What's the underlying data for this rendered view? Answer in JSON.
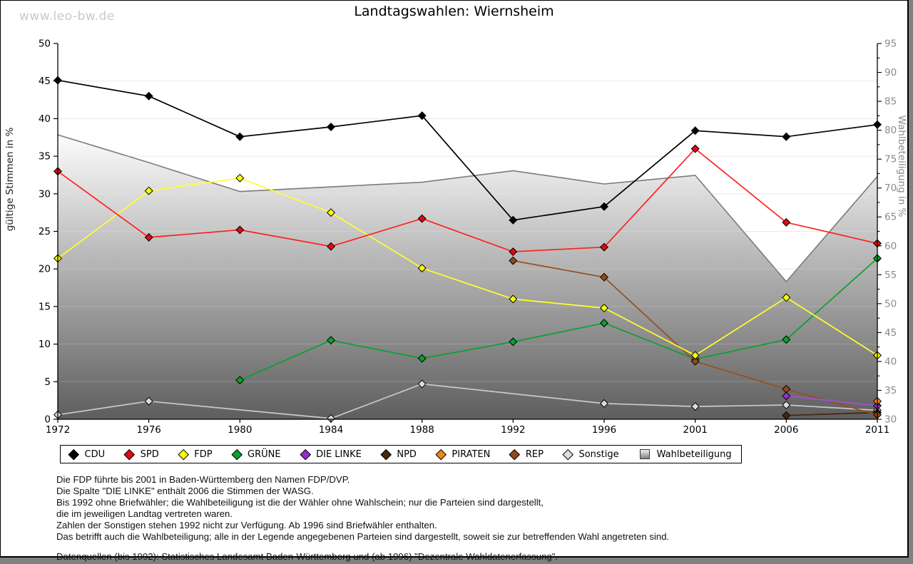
{
  "watermark": "www.leo-bw.de",
  "header": {
    "title": "Landtagswahlen: Wiernsheim"
  },
  "chart_data": {
    "type": "line",
    "title": "Landtagswahlen: Wiernsheim",
    "x": [
      1972,
      1976,
      1980,
      1984,
      1988,
      1992,
      1996,
      2001,
      2006,
      2011
    ],
    "ylabel_left": "gültige Stimmen in %",
    "ylabel_right": "Wahlbeteiligung in %",
    "ylim_left": [
      0,
      50
    ],
    "ylim_right": [
      30,
      95
    ],
    "yticks_left": [
      0,
      5,
      10,
      15,
      20,
      25,
      30,
      35,
      40,
      45,
      50
    ],
    "yticks_right": [
      30,
      35,
      40,
      45,
      50,
      55,
      60,
      65,
      70,
      75,
      80,
      85,
      90,
      95
    ],
    "ytick_minor_step_right": 2.5,
    "grid": true,
    "legend_position": "bottom",
    "series": [
      {
        "name": "CDU",
        "line_color": "#000000",
        "marker_color": "#000000",
        "z": 8,
        "values": [
          45.1,
          43.0,
          37.6,
          38.9,
          40.4,
          26.5,
          28.3,
          38.4,
          37.6,
          39.2
        ]
      },
      {
        "name": "SPD",
        "line_color": "#ff2020",
        "marker_color": "#e00914",
        "z": 7,
        "values": [
          33.0,
          24.2,
          25.2,
          23.0,
          26.7,
          22.3,
          22.9,
          36.0,
          26.2,
          23.4
        ]
      },
      {
        "name": "FDP",
        "line_color": "#ffff2e",
        "marker_color": "#ffff00",
        "z": 4,
        "values": [
          21.4,
          30.4,
          32.1,
          27.5,
          20.1,
          16.0,
          14.8,
          8.5,
          16.2,
          8.5
        ]
      },
      {
        "name": "GRÜNE",
        "line_color": "#0aa02c",
        "marker_color": "#0aa02c",
        "z": 2,
        "values": [
          null,
          null,
          5.2,
          10.5,
          8.1,
          10.3,
          12.8,
          8.0,
          10.6,
          21.4
        ]
      },
      {
        "name": "DIE LINKE",
        "line_color": "#a34fd4",
        "marker_color": "#9430c9",
        "z": 5,
        "values": [
          null,
          null,
          null,
          null,
          null,
          null,
          null,
          null,
          3.1,
          1.8
        ]
      },
      {
        "name": "NPD",
        "line_color": "#46280e",
        "marker_color": "#46280e",
        "z": 1,
        "values": [
          null,
          null,
          null,
          null,
          null,
          null,
          null,
          null,
          0.5,
          0.9
        ]
      },
      {
        "name": "PIRATEN",
        "line_color": "#f08418",
        "marker_color": "#f08418",
        "z": 6,
        "values": [
          null,
          null,
          null,
          null,
          null,
          null,
          null,
          null,
          null,
          2.4
        ]
      },
      {
        "name": "REP",
        "line_color": "#96501e",
        "marker_color": "#8f4a18",
        "z": 3,
        "values": [
          null,
          null,
          null,
          null,
          null,
          21.1,
          18.9,
          7.7,
          4.0,
          0.6
        ]
      },
      {
        "name": "Sonstige",
        "line_color": "#c9c9c9",
        "marker_color": "#dcdcdc",
        "z": 0,
        "values": [
          0.6,
          2.4,
          null,
          0.1,
          4.7,
          null,
          2.1,
          1.7,
          1.9,
          1.2
        ]
      }
    ],
    "area": {
      "name": "Wahlbeteiligung",
      "axis": "right",
      "edge_color": "#7b7b7b",
      "gradient_top": "#fdfdfd",
      "gradient_bottom": "#5e5e5e",
      "values": [
        79.2,
        74.4,
        69.4,
        70.2,
        71.0,
        73.0,
        70.7,
        72.2,
        53.8,
        72.0
      ]
    }
  },
  "footnotes": [
    "Die FDP führte bis 2001 in Baden-Württemberg den Namen FDP/DVP.",
    "Die Spalte \"DIE LINKE\" enthält 2006 die Stimmen der WASG.",
    "Bis 1992 ohne Briefwähler; die Wahlbeteiligung ist die der Wähler ohne Wahlschein; nur die Parteien sind dargestellt,",
    "die im jeweiligen Landtag vertreten waren.",
    "Zahlen der Sonstigen stehen 1992 nicht zur Verfügung. Ab 1996 sind Briefwähler enthalten.",
    "Das betrifft auch die Wahlbeteiligung; alle in der Legende angegebenen Parteien sind dargestellt, soweit sie zur betreffenden Wahl angetreten sind."
  ],
  "source_line": "Datenquellen (bis 1992): Statistisches Landesamt Baden-Württemberg und (ab 1996) \"Dezentrale Wahldatenerfassung\"."
}
